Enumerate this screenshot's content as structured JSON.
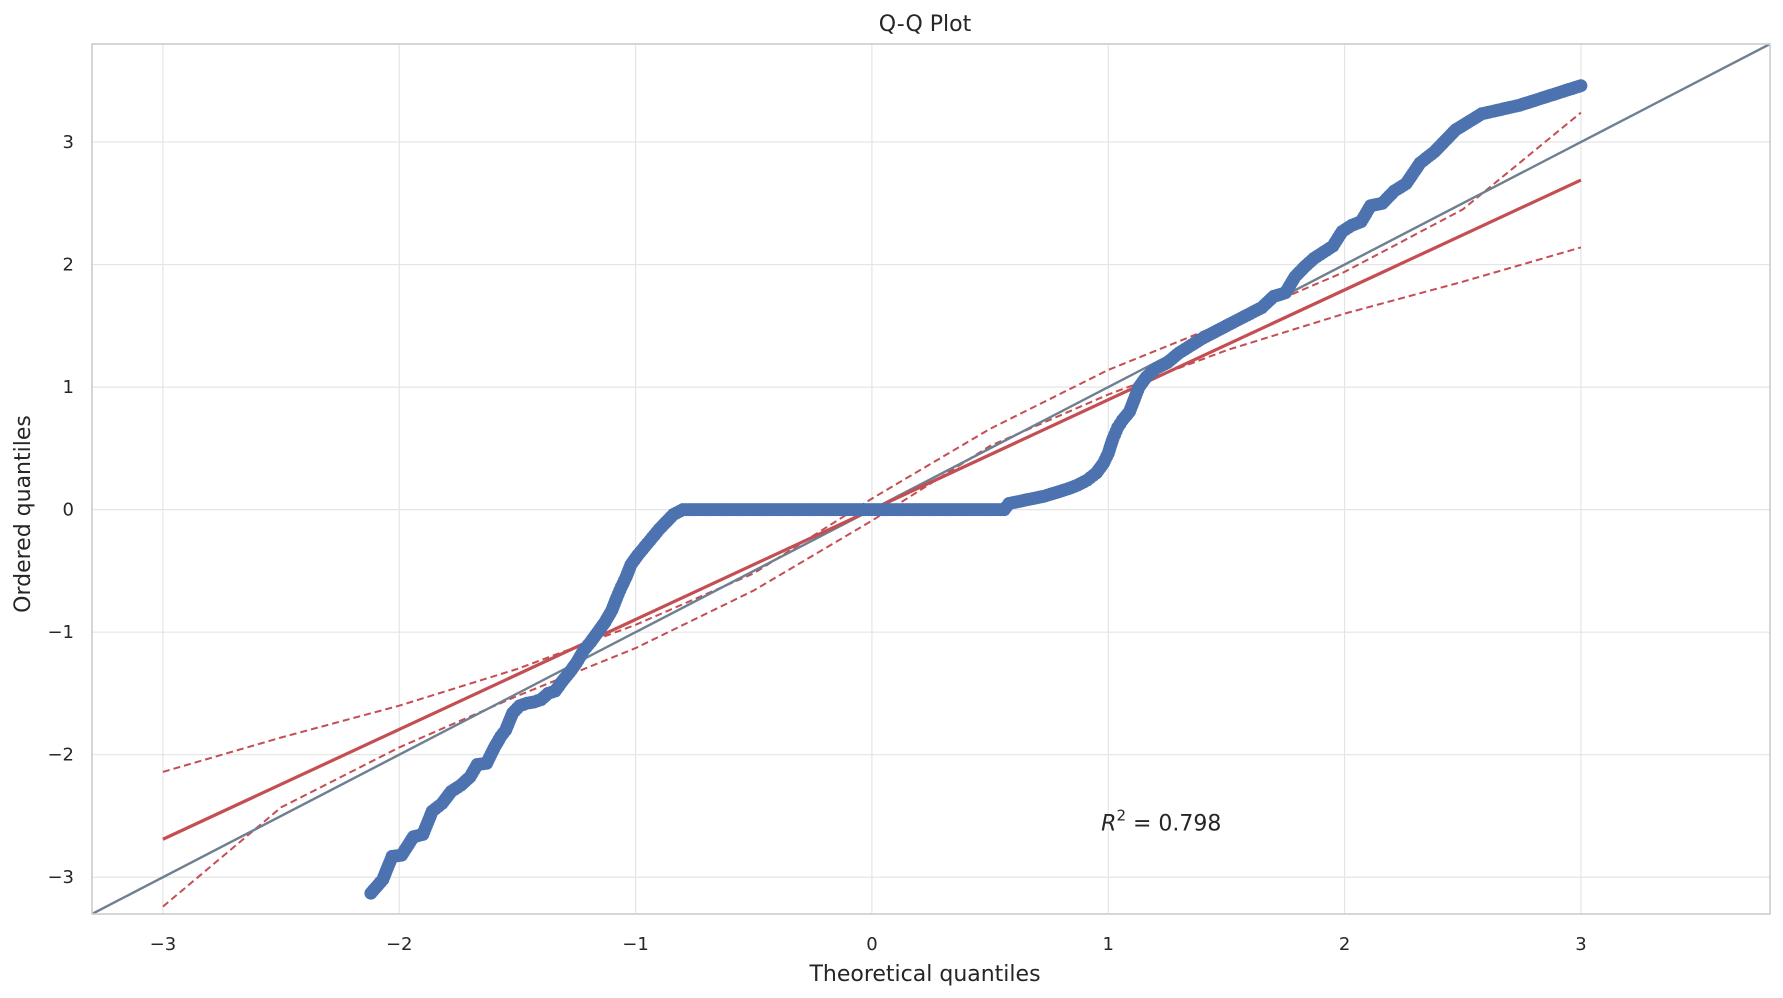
{
  "chart_data": {
    "type": "scatter",
    "title": "Q-Q Plot",
    "xlabel": "Theoretical quantiles",
    "ylabel": "Ordered quantiles",
    "xlim": [
      -3.3,
      3.8
    ],
    "ylim": [
      -3.3,
      3.8
    ],
    "xticks": [
      -3,
      -2,
      -1,
      0,
      1,
      2,
      3
    ],
    "yticks": [
      -3,
      -2,
      -1,
      0,
      1,
      2,
      3
    ],
    "xtick_labels": [
      "−3",
      "−2",
      "−1",
      "0",
      "1",
      "2",
      "3"
    ],
    "ytick_labels": [
      "−3",
      "−2",
      "−1",
      "0",
      "1",
      "2",
      "3"
    ],
    "grid": true,
    "colors": {
      "points": "#4c72b0",
      "fit_line": "#c44e52",
      "reference_line": "#6e7f91",
      "grid": "#e5e5e5",
      "frame": "#cccccc"
    },
    "points": [
      [
        -2.12,
        -3.13
      ],
      [
        -2.07,
        -3.02
      ],
      [
        -2.03,
        -2.83
      ],
      [
        -1.99,
        -2.82
      ],
      [
        -1.94,
        -2.67
      ],
      [
        -1.9,
        -2.65
      ],
      [
        -1.86,
        -2.46
      ],
      [
        -1.82,
        -2.4
      ],
      [
        -1.78,
        -2.3
      ],
      [
        -1.74,
        -2.25
      ],
      [
        -1.7,
        -2.18
      ],
      [
        -1.67,
        -2.08
      ],
      [
        -1.63,
        -2.07
      ],
      [
        -1.6,
        -1.95
      ],
      [
        -1.57,
        -1.85
      ],
      [
        -1.55,
        -1.8
      ],
      [
        -1.52,
        -1.66
      ],
      [
        -1.49,
        -1.6
      ],
      [
        -1.46,
        -1.58
      ],
      [
        -1.43,
        -1.57
      ],
      [
        -1.4,
        -1.55
      ],
      [
        -1.37,
        -1.5
      ],
      [
        -1.34,
        -1.48
      ],
      [
        -1.31,
        -1.4
      ],
      [
        -1.28,
        -1.33
      ],
      [
        -1.25,
        -1.25
      ],
      [
        -1.22,
        -1.15
      ],
      [
        -1.19,
        -1.08
      ],
      [
        -1.16,
        -1.0
      ],
      [
        -1.13,
        -0.92
      ],
      [
        -1.1,
        -0.82
      ],
      [
        -1.08,
        -0.72
      ],
      [
        -1.06,
        -0.63
      ],
      [
        -1.04,
        -0.55
      ],
      [
        -1.02,
        -0.45
      ],
      [
        -0.99,
        -0.37
      ],
      [
        -0.96,
        -0.3
      ],
      [
        -0.93,
        -0.23
      ],
      [
        -0.9,
        -0.16
      ],
      [
        -0.87,
        -0.1
      ],
      [
        -0.84,
        -0.04
      ],
      [
        -0.8,
        0.0
      ],
      [
        -0.6,
        0.0
      ],
      [
        -0.4,
        0.0
      ],
      [
        -0.2,
        0.0
      ],
      [
        0.0,
        0.0
      ],
      [
        0.2,
        0.0
      ],
      [
        0.4,
        0.0
      ],
      [
        0.56,
        0.0
      ],
      [
        0.58,
        0.05
      ],
      [
        0.63,
        0.07
      ],
      [
        0.68,
        0.09
      ],
      [
        0.73,
        0.11
      ],
      [
        0.78,
        0.14
      ],
      [
        0.83,
        0.17
      ],
      [
        0.87,
        0.2
      ],
      [
        0.91,
        0.24
      ],
      [
        0.95,
        0.3
      ],
      [
        0.98,
        0.38
      ],
      [
        1.0,
        0.46
      ],
      [
        1.02,
        0.58
      ],
      [
        1.04,
        0.67
      ],
      [
        1.06,
        0.73
      ],
      [
        1.09,
        0.8
      ],
      [
        1.11,
        0.9
      ],
      [
        1.13,
        1.0
      ],
      [
        1.16,
        1.08
      ],
      [
        1.2,
        1.15
      ],
      [
        1.25,
        1.2
      ],
      [
        1.3,
        1.28
      ],
      [
        1.35,
        1.34
      ],
      [
        1.4,
        1.4
      ],
      [
        1.45,
        1.45
      ],
      [
        1.5,
        1.5
      ],
      [
        1.55,
        1.55
      ],
      [
        1.6,
        1.6
      ],
      [
        1.65,
        1.65
      ],
      [
        1.7,
        1.74
      ],
      [
        1.75,
        1.77
      ],
      [
        1.79,
        1.9
      ],
      [
        1.83,
        1.98
      ],
      [
        1.87,
        2.05
      ],
      [
        1.91,
        2.1
      ],
      [
        1.95,
        2.15
      ],
      [
        1.99,
        2.27
      ],
      [
        2.03,
        2.32
      ],
      [
        2.07,
        2.35
      ],
      [
        2.11,
        2.48
      ],
      [
        2.16,
        2.5
      ],
      [
        2.21,
        2.6
      ],
      [
        2.26,
        2.66
      ],
      [
        2.32,
        2.83
      ],
      [
        2.38,
        2.92
      ],
      [
        2.47,
        3.1
      ],
      [
        2.58,
        3.23
      ],
      [
        2.74,
        3.3
      ],
      [
        3.0,
        3.46
      ]
    ],
    "fit_line": {
      "x": [
        -3.0,
        3.0
      ],
      "y": [
        -2.69,
        2.69
      ]
    },
    "reference_line": {
      "x": [
        -3.3,
        3.8
      ],
      "y": [
        -3.3,
        3.8
      ]
    },
    "confidence_band": {
      "x": [
        -3.0,
        -2.5,
        -2.0,
        -1.5,
        -1.0,
        -0.5,
        0.0,
        0.5,
        1.0,
        1.5,
        2.0,
        2.5,
        3.0
      ],
      "upper": [
        -2.14,
        -1.86,
        -1.6,
        -1.3,
        -0.94,
        -0.52,
        0.09,
        0.66,
        1.14,
        1.53,
        1.94,
        2.45,
        3.24
      ],
      "lower": [
        -3.24,
        -2.43,
        -1.94,
        -1.52,
        -1.13,
        -0.66,
        -0.09,
        0.52,
        0.94,
        1.3,
        1.6,
        1.86,
        2.14
      ]
    },
    "annotations": [
      {
        "text_main": "R",
        "text_sup": "2",
        "text_rest": " = 0.798",
        "x": 0.97,
        "y": -2.62
      }
    ]
  }
}
